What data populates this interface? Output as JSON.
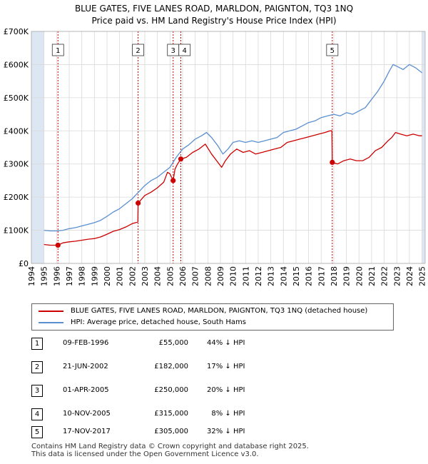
{
  "title": {
    "line1": "BLUE GATES, FIVE LANES ROAD, MARLDON, PAIGNTON, TQ3 1NQ",
    "line2": "Price paid vs. HM Land Registry's House Price Index (HPI)"
  },
  "colors": {
    "property": "#cc0000",
    "hpi": "#5b8fd0",
    "grid": "#d9d9d9",
    "band": "#dde6f3",
    "marker_line": "#cc0000"
  },
  "chart_data": {
    "type": "line",
    "title": "Price paid vs. HM Land Registry's House Price Index (HPI)",
    "xlabel": "",
    "ylabel": "",
    "xlim": [
      1994,
      2025.25
    ],
    "ylim": [
      0,
      700000
    ],
    "y_ticks": [
      0,
      100000,
      200000,
      300000,
      400000,
      500000,
      600000,
      700000
    ],
    "y_tick_labels": [
      "£0",
      "£100K",
      "£200K",
      "£300K",
      "£400K",
      "£500K",
      "£600K",
      "£700K"
    ],
    "x_ticks": [
      "1994",
      "1995",
      "1996",
      "1997",
      "1998",
      "1999",
      "2000",
      "2001",
      "2002",
      "2003",
      "2004",
      "2005",
      "2006",
      "2007",
      "2008",
      "2009",
      "2010",
      "2011",
      "2012",
      "2013",
      "2014",
      "2015",
      "2016",
      "2017",
      "2018",
      "2019",
      "2020",
      "2021",
      "2022",
      "2023",
      "2024",
      "2025"
    ],
    "shaded_periods": [
      [
        1994,
        1995
      ],
      [
        2025,
        2025.25
      ]
    ],
    "series": [
      {
        "name": "BLUE GATES, FIVE LANES ROAD, MARLDON, PAIGNTON, TQ3 1NQ (detached house)",
        "color": "#cc0000",
        "x": [
          1995.0,
          1995.5,
          1996.11,
          1996.5,
          1997.0,
          1997.5,
          1998.0,
          1998.5,
          1999.0,
          1999.5,
          2000.0,
          2000.5,
          2001.0,
          2001.5,
          2002.0,
          2002.45,
          2002.47,
          2003.0,
          2003.5,
          2004.0,
          2004.5,
          2004.8,
          2005.0,
          2005.25,
          2005.4,
          2005.6,
          2005.86,
          2006.3,
          2006.8,
          2007.3,
          2007.8,
          2008.3,
          2008.8,
          2009.1,
          2009.4,
          2009.8,
          2010.3,
          2010.8,
          2011.3,
          2011.8,
          2012.3,
          2012.8,
          2013.3,
          2013.8,
          2014.3,
          2014.8,
          2015.3,
          2015.8,
          2016.3,
          2016.8,
          2017.3,
          2017.7,
          2017.85,
          2017.88,
          2018.3,
          2018.8,
          2019.3,
          2019.8,
          2020.3,
          2020.8,
          2021.3,
          2021.8,
          2022.3,
          2022.6,
          2022.9,
          2023.3,
          2023.8,
          2024.3,
          2024.8,
          2025.0
        ],
        "values": [
          57000,
          55000,
          55000,
          62000,
          65000,
          67000,
          70000,
          73000,
          75000,
          80000,
          88000,
          97000,
          102000,
          110000,
          120000,
          125000,
          182000,
          205000,
          215000,
          228000,
          245000,
          275000,
          270000,
          250000,
          285000,
          300000,
          315000,
          320000,
          335000,
          345000,
          360000,
          330000,
          305000,
          290000,
          310000,
          330000,
          345000,
          335000,
          340000,
          330000,
          335000,
          340000,
          345000,
          350000,
          365000,
          370000,
          375000,
          380000,
          385000,
          390000,
          395000,
          400000,
          400000,
          305000,
          300000,
          310000,
          315000,
          310000,
          310000,
          320000,
          340000,
          350000,
          370000,
          380000,
          395000,
          390000,
          385000,
          390000,
          385000,
          385000
        ]
      },
      {
        "name": "HPI: Average price, detached house, South Hams",
        "color": "#5b8fd0",
        "x": [
          1995.0,
          1995.5,
          1996.0,
          1996.5,
          1997.0,
          1997.5,
          1998.0,
          1998.5,
          1999.0,
          1999.5,
          2000.0,
          2000.5,
          2001.0,
          2001.5,
          2002.0,
          2002.5,
          2003.0,
          2003.5,
          2004.0,
          2004.5,
          2005.0,
          2005.5,
          2006.0,
          2006.5,
          2007.0,
          2007.5,
          2007.9,
          2008.3,
          2008.8,
          2009.2,
          2009.6,
          2010.0,
          2010.5,
          2011.0,
          2011.5,
          2012.0,
          2012.5,
          2013.0,
          2013.5,
          2014.0,
          2014.5,
          2015.0,
          2015.5,
          2016.0,
          2016.5,
          2017.0,
          2017.5,
          2018.0,
          2018.5,
          2019.0,
          2019.5,
          2020.0,
          2020.5,
          2021.0,
          2021.5,
          2022.0,
          2022.4,
          2022.7,
          2023.0,
          2023.5,
          2024.0,
          2024.5,
          2025.0
        ],
        "values": [
          100000,
          98000,
          98000,
          100000,
          105000,
          108000,
          113000,
          118000,
          123000,
          130000,
          142000,
          155000,
          165000,
          180000,
          195000,
          215000,
          235000,
          250000,
          260000,
          275000,
          290000,
          320000,
          345000,
          358000,
          375000,
          385000,
          395000,
          380000,
          355000,
          330000,
          345000,
          365000,
          370000,
          365000,
          370000,
          365000,
          370000,
          375000,
          380000,
          395000,
          400000,
          405000,
          415000,
          425000,
          430000,
          440000,
          445000,
          450000,
          445000,
          455000,
          450000,
          460000,
          470000,
          495000,
          520000,
          550000,
          580000,
          600000,
          595000,
          585000,
          600000,
          590000,
          575000
        ]
      }
    ],
    "markers": [
      {
        "id": "1",
        "x": 1996.11,
        "value": 55000
      },
      {
        "id": "2",
        "x": 2002.47,
        "value": 182000
      },
      {
        "id": "3",
        "x": 2005.25,
        "value": 250000
      },
      {
        "id": "4",
        "x": 2005.86,
        "value": 315000
      },
      {
        "id": "5",
        "x": 2017.88,
        "value": 305000
      }
    ]
  },
  "legend": {
    "items": [
      {
        "label": "BLUE GATES, FIVE LANES ROAD, MARLDON, PAIGNTON, TQ3 1NQ (detached house)",
        "color": "#cc0000"
      },
      {
        "label": "HPI: Average price, detached house, South Hams",
        "color": "#5b8fd0"
      }
    ]
  },
  "transactions": [
    {
      "num": "1",
      "date": "09-FEB-1996",
      "price": "£55,000",
      "hpi": "44% ↓ HPI"
    },
    {
      "num": "2",
      "date": "21-JUN-2002",
      "price": "£182,000",
      "hpi": "17% ↓ HPI"
    },
    {
      "num": "3",
      "date": "01-APR-2005",
      "price": "£250,000",
      "hpi": "20% ↓ HPI"
    },
    {
      "num": "4",
      "date": "10-NOV-2005",
      "price": "£315,000",
      "hpi": "  8% ↓ HPI"
    },
    {
      "num": "5",
      "date": "17-NOV-2017",
      "price": "£305,000",
      "hpi": "32% ↓ HPI"
    }
  ],
  "footer": {
    "line1": "Contains HM Land Registry data © Crown copyright and database right 2025.",
    "line2": "This data is licensed under the Open Government Licence v3.0."
  }
}
